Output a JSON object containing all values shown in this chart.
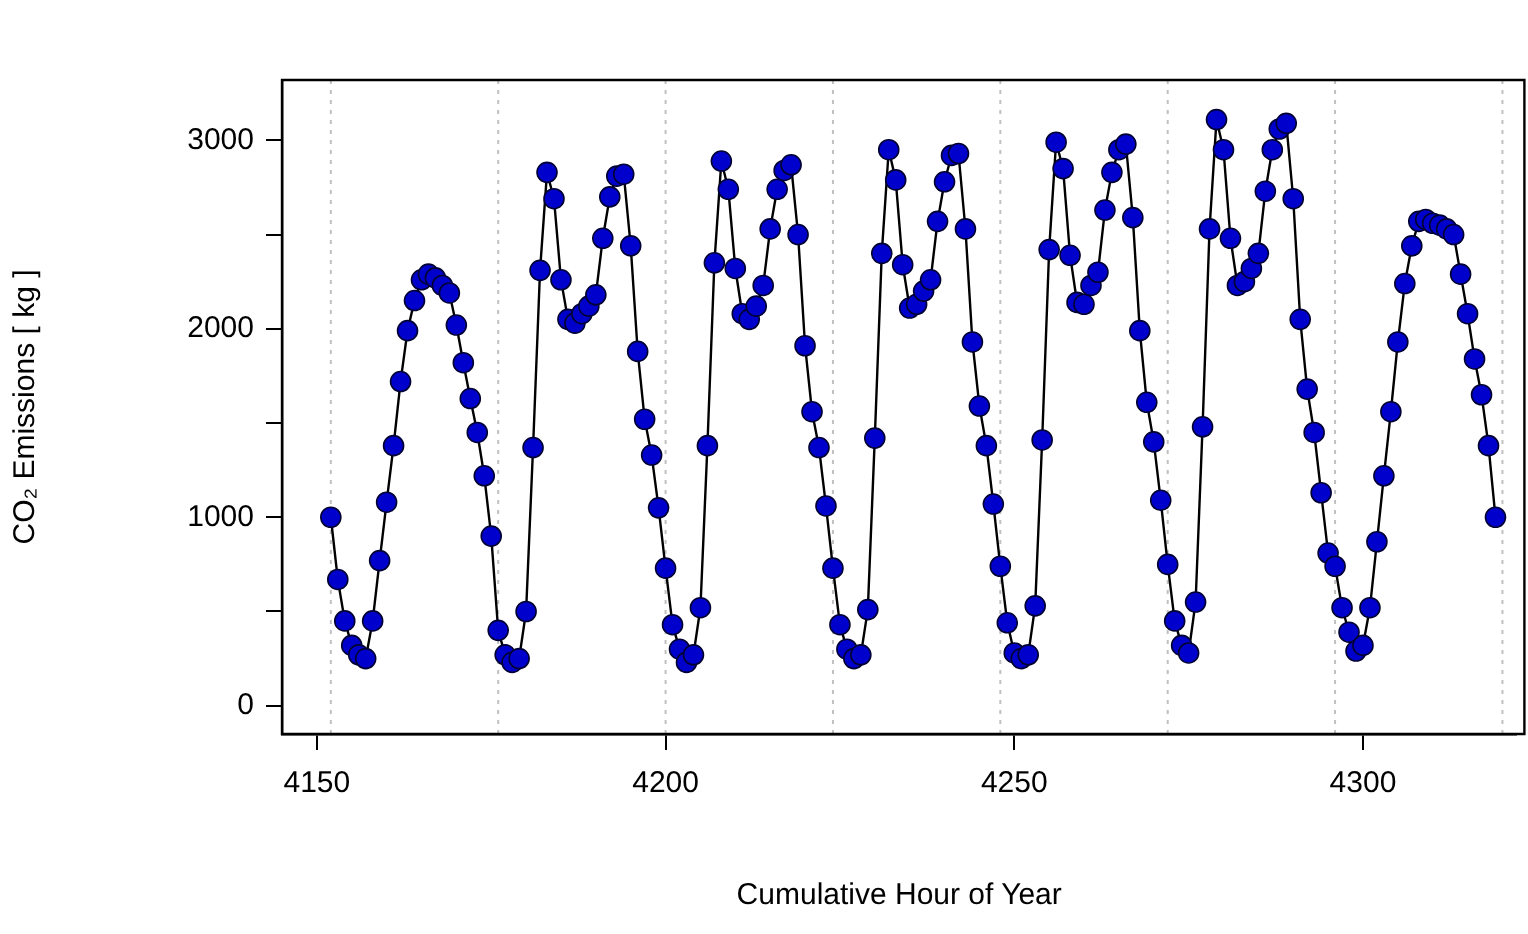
{
  "chart_data": {
    "type": "line",
    "xlabel": "Cumulative Hour of Year",
    "ylabel": "CO₂ Emissions [ kg ]",
    "xlim": [
      4145,
      4322
    ],
    "xticks": [
      4150,
      4200,
      4250,
      4300
    ],
    "ylim": [
      -150,
      3320
    ],
    "yticks": [
      0,
      {
        "value": 500,
        "label": null
      },
      1000,
      {
        "value": 1500,
        "label": null
      },
      2000,
      {
        "value": 2500,
        "label": null
      },
      3000
    ],
    "grid": false,
    "legend": false,
    "marker": "circle",
    "line_style": "solid",
    "ref_lines": [
      {
        "axis": "x",
        "value": 4152,
        "label": null,
        "color": "#c0c0c0",
        "line_style": "dotted"
      },
      {
        "axis": "x",
        "value": 4176,
        "label": null,
        "color": "#c0c0c0",
        "line_style": "dotted"
      },
      {
        "axis": "x",
        "value": 4200,
        "label": null,
        "color": "#c0c0c0",
        "line_style": "dotted"
      },
      {
        "axis": "x",
        "value": 4224,
        "label": null,
        "color": "#c0c0c0",
        "line_style": "dotted"
      },
      {
        "axis": "x",
        "value": 4248,
        "label": null,
        "color": "#c0c0c0",
        "line_style": "dotted"
      },
      {
        "axis": "x",
        "value": 4272,
        "label": null,
        "color": "#c0c0c0",
        "line_style": "dotted"
      },
      {
        "axis": "x",
        "value": 4296,
        "label": null,
        "color": "#c0c0c0",
        "line_style": "dotted"
      },
      {
        "axis": "x",
        "value": 4320,
        "label": null,
        "color": "#c0c0c0",
        "line_style": "dotted"
      }
    ],
    "series": [
      {
        "color": "#0000cc",
        "x": [
          4152,
          4153,
          4154,
          4155,
          4156,
          4157,
          4158,
          4159,
          4160,
          4161,
          4162,
          4163,
          4164,
          4165,
          4166,
          4167,
          4168,
          4169,
          4170,
          4171,
          4172,
          4173,
          4174,
          4175,
          4176,
          4177,
          4178,
          4179,
          4180,
          4181,
          4182,
          4183,
          4184,
          4185,
          4186,
          4187,
          4188,
          4189,
          4190,
          4191,
          4192,
          4193,
          4194,
          4195,
          4196,
          4197,
          4198,
          4199,
          4200,
          4201,
          4202,
          4203,
          4204,
          4205,
          4206,
          4207,
          4208,
          4209,
          4210,
          4211,
          4212,
          4213,
          4214,
          4215,
          4216,
          4217,
          4218,
          4219,
          4220,
          4221,
          4222,
          4223,
          4224,
          4225,
          4226,
          4227,
          4228,
          4229,
          4230,
          4231,
          4232,
          4233,
          4234,
          4235,
          4236,
          4237,
          4238,
          4239,
          4240,
          4241,
          4242,
          4243,
          4244,
          4245,
          4246,
          4247,
          4248,
          4249,
          4250,
          4251,
          4252,
          4253,
          4254,
          4255,
          4256,
          4257,
          4258,
          4259,
          4260,
          4261,
          4262,
          4263,
          4264,
          4265,
          4266,
          4267,
          4268,
          4269,
          4270,
          4271,
          4272,
          4273,
          4274,
          4275,
          4276,
          4277,
          4278,
          4279,
          4280,
          4281,
          4282,
          4283,
          4284,
          4285,
          4286,
          4287,
          4288,
          4289,
          4290,
          4291,
          4292,
          4293,
          4294,
          4295,
          4296,
          4297,
          4298,
          4299,
          4300,
          4301,
          4302,
          4303,
          4304,
          4305,
          4306,
          4307,
          4308,
          4309,
          4310,
          4311,
          4312,
          4313,
          4314,
          4315,
          4316,
          4317,
          4318,
          4319
        ],
        "values": [
          1000,
          670,
          450,
          320,
          270,
          250,
          450,
          770,
          1080,
          1380,
          1720,
          1990,
          2150,
          2260,
          2290,
          2270,
          2230,
          2190,
          2020,
          1820,
          1630,
          1450,
          1220,
          900,
          400,
          270,
          230,
          250,
          500,
          1370,
          2310,
          2830,
          2690,
          2260,
          2050,
          2030,
          2080,
          2120,
          2180,
          2480,
          2700,
          2810,
          2820,
          2440,
          1880,
          1520,
          1330,
          1050,
          730,
          430,
          300,
          230,
          270,
          520,
          1380,
          2350,
          2890,
          2740,
          2320,
          2080,
          2050,
          2120,
          2230,
          2530,
          2740,
          2840,
          2870,
          2500,
          1910,
          1560,
          1370,
          1060,
          730,
          430,
          300,
          250,
          270,
          510,
          1420,
          2400,
          2950,
          2790,
          2340,
          2110,
          2130,
          2200,
          2260,
          2570,
          2780,
          2920,
          2930,
          2530,
          1930,
          1590,
          1380,
          1070,
          740,
          440,
          280,
          250,
          270,
          530,
          1410,
          2420,
          2990,
          2850,
          2390,
          2140,
          2130,
          2230,
          2300,
          2630,
          2830,
          2950,
          2980,
          2590,
          1990,
          1610,
          1400,
          1090,
          750,
          450,
          320,
          280,
          550,
          1480,
          2530,
          3110,
          2950,
          2480,
          2230,
          2250,
          2320,
          2400,
          2730,
          2950,
          3060,
          3090,
          2690,
          2050,
          1680,
          1450,
          1130,
          810,
          740,
          520,
          390,
          290,
          320,
          520,
          870,
          1220,
          1560,
          1930,
          2240,
          2440,
          2570,
          2580,
          2560,
          2550,
          2530,
          2500,
          2290,
          2080,
          1840,
          1650,
          1380,
          1000
        ]
      }
    ]
  }
}
